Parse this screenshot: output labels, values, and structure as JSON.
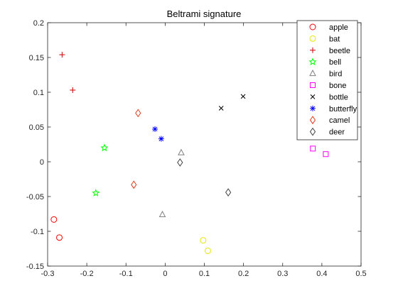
{
  "chart_data": {
    "type": "scatter",
    "title": "Beltrami signature",
    "xlabel": "",
    "ylabel": "",
    "xlim": [
      -0.3,
      0.5
    ],
    "ylim": [
      -0.15,
      0.2
    ],
    "xticks": [
      -0.3,
      -0.2,
      -0.1,
      0,
      0.1,
      0.2,
      0.3,
      0.4,
      0.5
    ],
    "xtick_labels": [
      "-0.3",
      "-0.2",
      "-0.1",
      "0",
      "0.1",
      "0.2",
      "0.3",
      "0.4",
      "0.5"
    ],
    "yticks": [
      -0.15,
      -0.1,
      -0.05,
      0,
      0.05,
      0.1,
      0.15,
      0.2
    ],
    "ytick_labels": [
      "-0.15",
      "-0.1",
      "-0.05",
      "0",
      "0.05",
      "0.1",
      "0.15",
      "0.2"
    ],
    "grid": false,
    "legend_position": "top-right",
    "series": [
      {
        "name": "apple",
        "marker": "circle",
        "color": "#ff0000",
        "points": [
          [
            -0.284,
            -0.083
          ],
          [
            -0.27,
            -0.109
          ]
        ]
      },
      {
        "name": "bat",
        "marker": "circle",
        "color": "#e6e600",
        "points": [
          [
            0.097,
            -0.113
          ],
          [
            0.109,
            -0.128
          ]
        ]
      },
      {
        "name": "beetle",
        "marker": "plus",
        "color": "#cc0000",
        "points": [
          [
            -0.263,
            0.154
          ],
          [
            -0.236,
            0.103
          ]
        ]
      },
      {
        "name": "bell",
        "marker": "star",
        "color": "#00ff00",
        "points": [
          [
            -0.155,
            0.02
          ],
          [
            -0.177,
            -0.045
          ]
        ]
      },
      {
        "name": "bird",
        "marker": "triangle",
        "color": "#808080",
        "points": [
          [
            0.041,
            0.013
          ],
          [
            -0.007,
            -0.076
          ]
        ]
      },
      {
        "name": "bone",
        "marker": "square",
        "color": "#ff00ff",
        "points": [
          [
            0.377,
            0.019
          ],
          [
            0.41,
            0.011
          ]
        ]
      },
      {
        "name": "bottle",
        "marker": "cross",
        "color": "#000000",
        "points": [
          [
            0.143,
            0.077
          ],
          [
            0.199,
            0.094
          ]
        ]
      },
      {
        "name": "butterfly",
        "marker": "asterisk",
        "color": "#0000ff",
        "points": [
          [
            -0.026,
            0.047
          ],
          [
            -0.01,
            0.033
          ]
        ]
      },
      {
        "name": "camel",
        "marker": "diamond",
        "color": "#e03c1e",
        "points": [
          [
            -0.069,
            0.07
          ],
          [
            -0.08,
            -0.033
          ]
        ]
      },
      {
        "name": "deer",
        "marker": "diamond",
        "color": "#404040",
        "points": [
          [
            0.038,
            -0.001
          ],
          [
            0.161,
            -0.044
          ]
        ]
      }
    ]
  }
}
